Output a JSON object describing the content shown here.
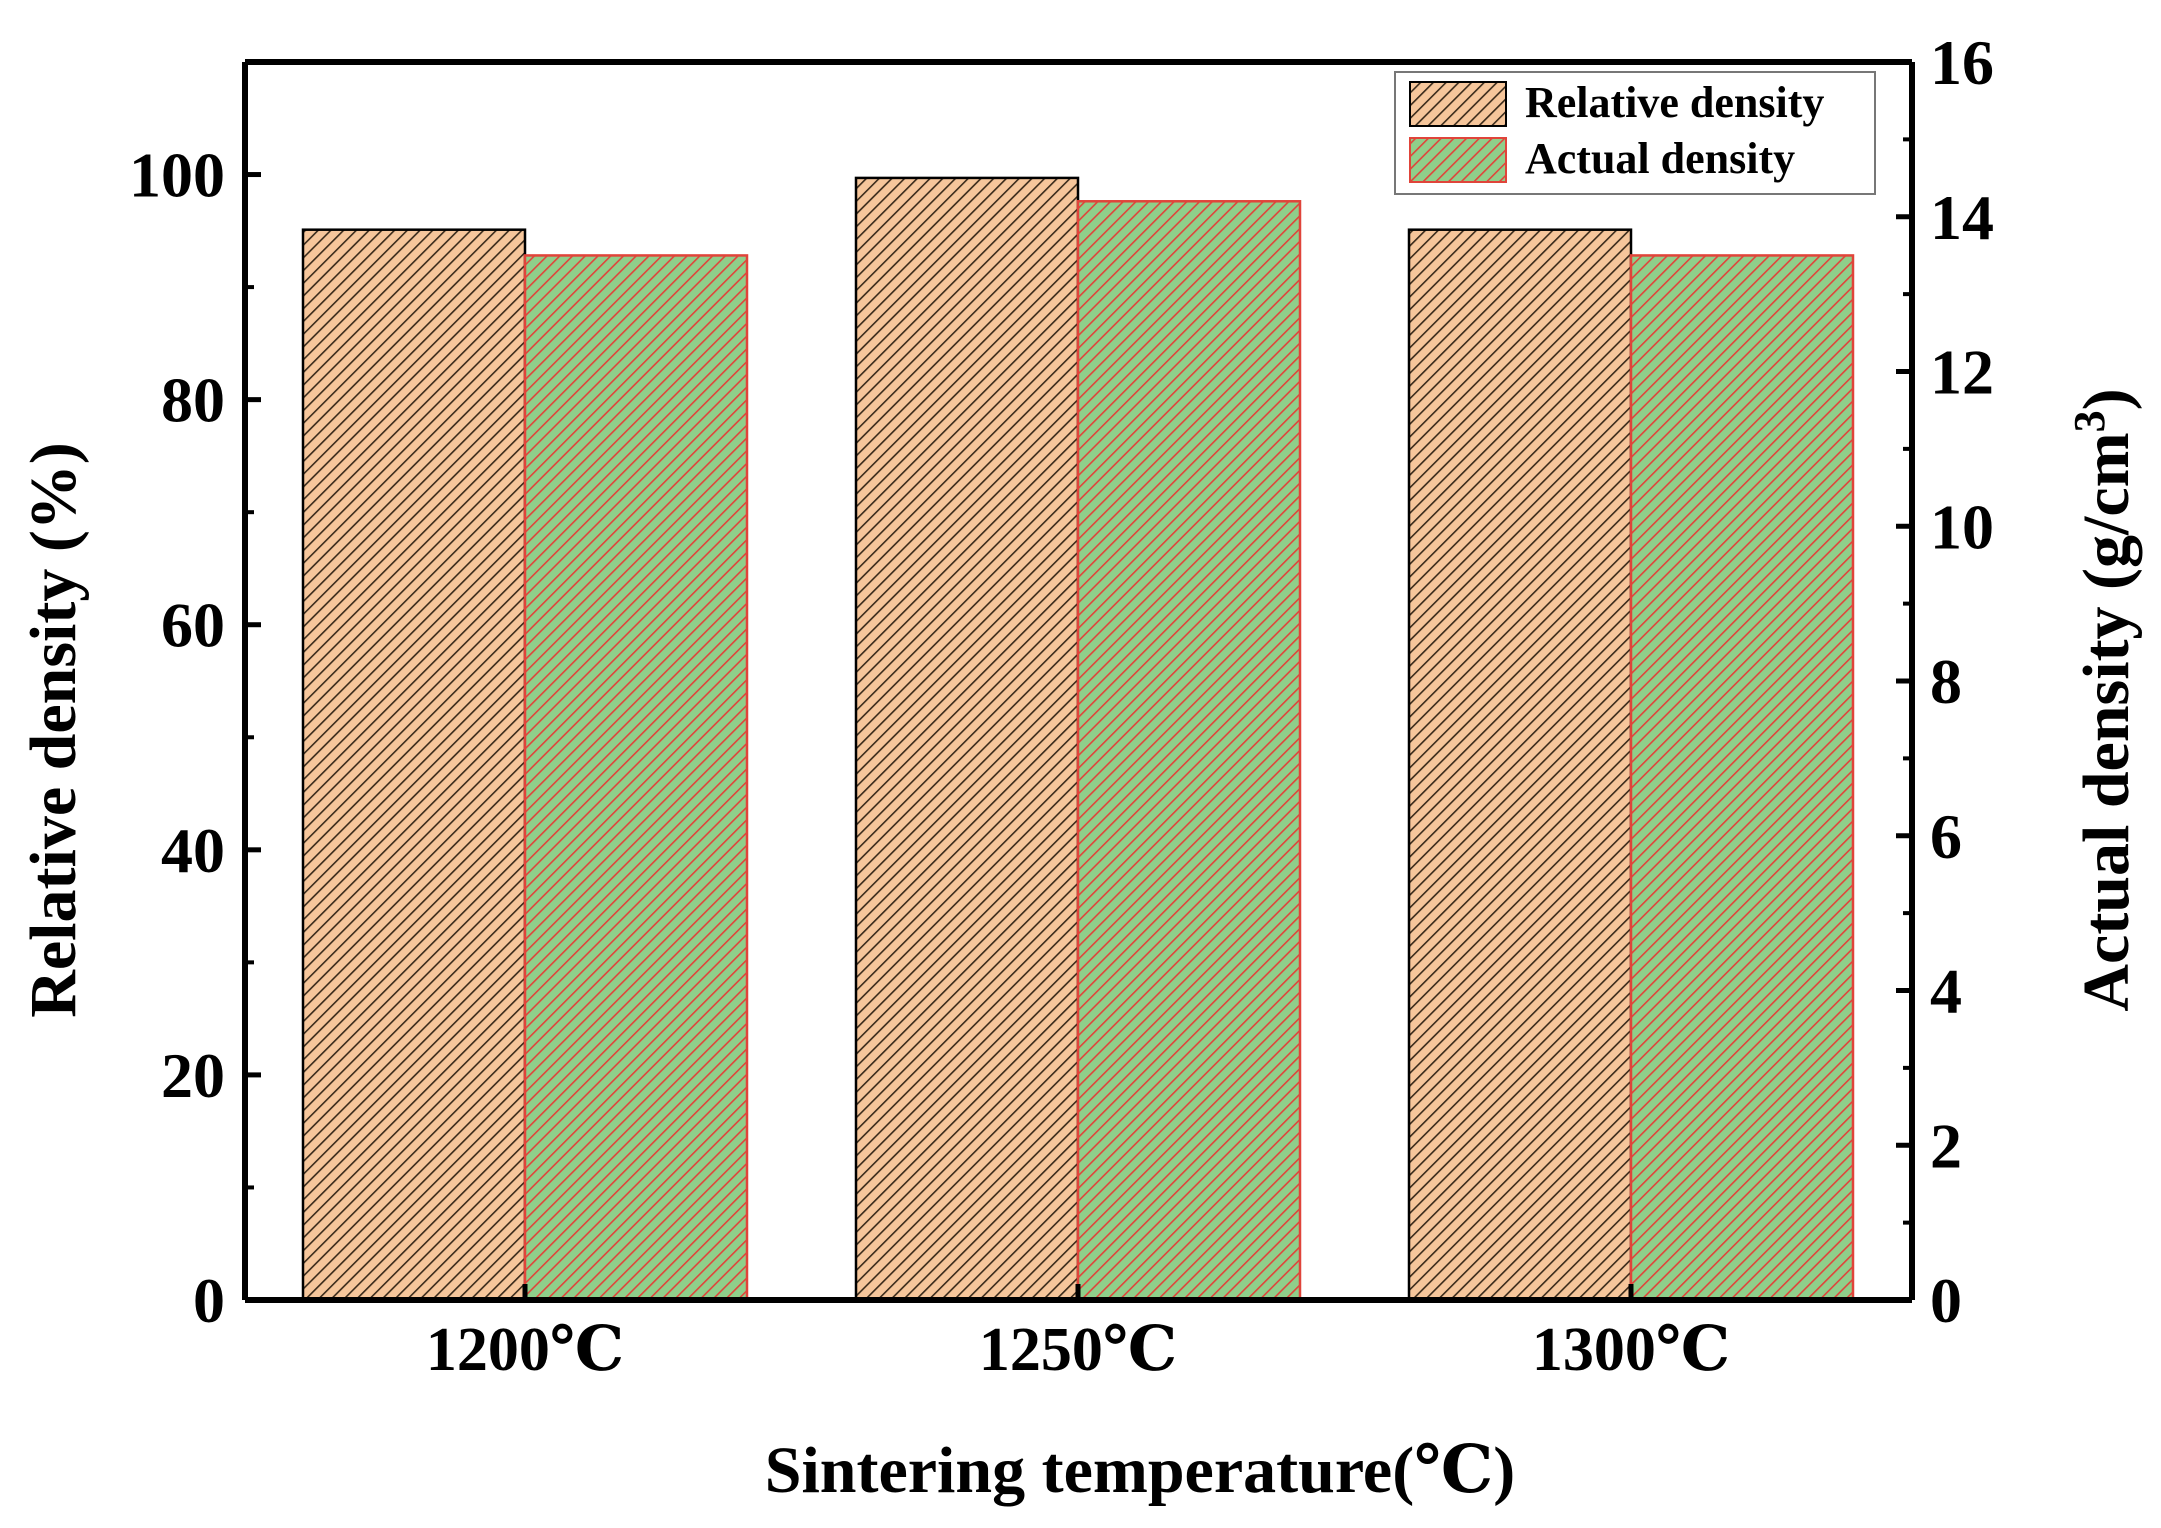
{
  "chart_data": {
    "type": "bar",
    "categories": [
      "1200℃",
      "1250℃",
      "1300℃"
    ],
    "xlabel": "Sintering temperature(℃)",
    "ylabel_left": "Relative density (%)",
    "ylabel_right_main": "Actual density (g/cm",
    "ylabel_right_sup": "3",
    "ylabel_right_close": ")",
    "ylim_left": [
      0,
      110
    ],
    "yticks_left": [
      0,
      20,
      40,
      60,
      80,
      100
    ],
    "ylim_right": [
      0,
      16
    ],
    "yticks_right": [
      0,
      2,
      4,
      6,
      8,
      10,
      12,
      14,
      16
    ],
    "series": [
      {
        "name": "Relative density",
        "axis": "left",
        "values": [
          95.1,
          99.7,
          95.1
        ]
      },
      {
        "name": "Actual density",
        "axis": "right",
        "values": [
          13.5,
          14.2,
          13.5
        ]
      }
    ],
    "legend_position": "top-right",
    "grid": false
  },
  "colors": {
    "relative_fill": "#f6c69b",
    "relative_hatch": "#3a2a1a",
    "actual_fill": "#8fcf8a",
    "actual_hatch": "#e0443a",
    "axis": "#000000"
  }
}
